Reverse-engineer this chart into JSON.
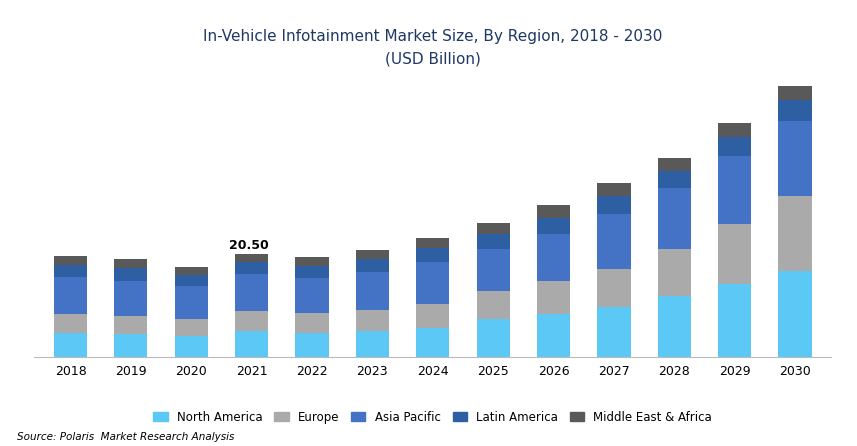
{
  "title_line1": "In-Vehicle Infotainment Market Size, By Region, 2018 - 2030",
  "title_line2": "(USD Billion)",
  "source": "Source: Polaris  Market Research Analysis",
  "categories": [
    "2018",
    "2019",
    "2020",
    "2021",
    "2022",
    "2023",
    "2024",
    "2025",
    "2026",
    "2027",
    "2028",
    "2029",
    "2030"
  ],
  "annotation_year": "2021",
  "annotation_value": "20.50",
  "regions": [
    "North America",
    "Europe",
    "Asia Pacific",
    "Latin America",
    "Middle East & Africa"
  ],
  "colors": [
    "#5BC8F5",
    "#AAAAAA",
    "#4472C4",
    "#2E5FA3",
    "#595959"
  ],
  "data": {
    "North America": [
      4.8,
      4.5,
      4.2,
      5.1,
      4.8,
      5.2,
      5.8,
      7.5,
      8.5,
      10.0,
      12.0,
      14.5,
      17.0
    ],
    "Europe": [
      3.8,
      3.6,
      3.3,
      4.1,
      3.9,
      4.2,
      4.8,
      5.5,
      6.5,
      7.5,
      9.5,
      12.0,
      15.0
    ],
    "Asia Pacific": [
      7.2,
      7.0,
      6.5,
      7.2,
      7.0,
      7.5,
      8.2,
      8.5,
      9.5,
      11.0,
      12.0,
      13.5,
      15.0
    ],
    "Latin America": [
      2.4,
      2.5,
      2.2,
      2.5,
      2.3,
      2.5,
      2.8,
      3.0,
      3.2,
      3.5,
      3.5,
      3.8,
      4.0
    ],
    "Middle East & Africa": [
      1.8,
      1.9,
      1.6,
      1.6,
      1.8,
      1.9,
      2.1,
      2.2,
      2.4,
      2.5,
      2.5,
      2.7,
      2.9
    ]
  },
  "ylim": [
    0,
    55
  ],
  "bar_width": 0.55,
  "background_color": "#FFFFFF",
  "title_color": "#1F3864",
  "title_fontsize": 11,
  "tick_fontsize": 9,
  "legend_fontsize": 8.5
}
